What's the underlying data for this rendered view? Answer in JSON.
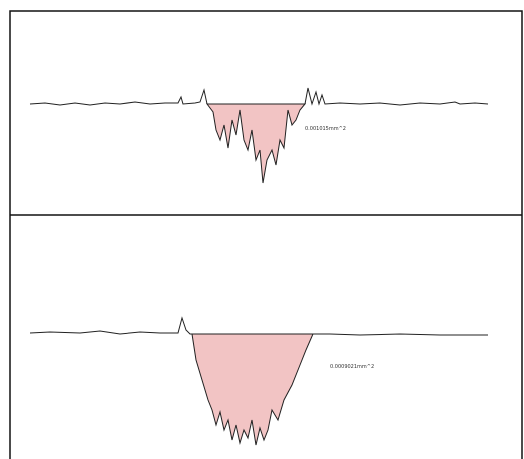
{
  "panels": [
    {
      "area_label": "0.001015mm^2"
    },
    {
      "area_label": "0.0009021mm^2"
    }
  ]
}
